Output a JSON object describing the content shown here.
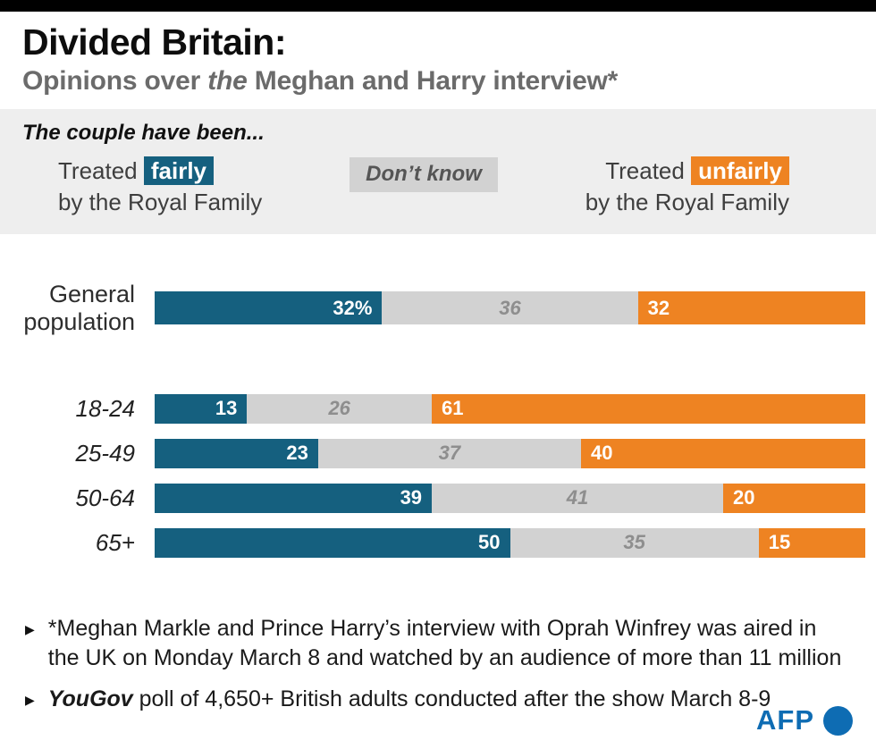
{
  "header": {
    "title": "Divided Britain:",
    "subtitle_pre": "Opinions over ",
    "subtitle_italic": "the",
    "subtitle_post": " Meghan and Harry interview*"
  },
  "legend": {
    "intro": "The couple have been...",
    "fairly_prefix": "Treated ",
    "fairly_word": "fairly",
    "fairly_line2": "by the Royal Family",
    "dont_know": "Don’t know",
    "unfairly_prefix": "Treated ",
    "unfairly_word": "unfairly",
    "unfairly_line2": "by the Royal Family"
  },
  "chart_data": {
    "type": "bar",
    "stacked": true,
    "orientation": "horizontal",
    "unit": "%",
    "xlim": [
      0,
      100
    ],
    "categories": [
      "General population",
      "18-24",
      "25-49",
      "50-64",
      "65+"
    ],
    "series": [
      {
        "name": "Treated fairly by the Royal Family",
        "key": "fairly",
        "color": "#15607f",
        "values": [
          32,
          13,
          23,
          39,
          50
        ]
      },
      {
        "name": "Don’t know",
        "key": "dont_know",
        "color": "#d2d2d2",
        "values": [
          36,
          26,
          37,
          41,
          35
        ]
      },
      {
        "name": "Treated unfairly by the Royal Family",
        "key": "unfairly",
        "color": "#ee8322",
        "values": [
          32,
          61,
          40,
          20,
          15
        ]
      }
    ],
    "value_labels": [
      [
        "32%",
        "36",
        "32"
      ],
      [
        "13",
        "26",
        "61"
      ],
      [
        "23",
        "37",
        "40"
      ],
      [
        "39",
        "41",
        "20"
      ],
      [
        "50",
        "35",
        "15"
      ]
    ],
    "row_meta": [
      {
        "label_lines": [
          "General",
          "population"
        ],
        "italic": false,
        "emphasized": true
      },
      {
        "label_lines": [
          "18-24"
        ],
        "italic": true,
        "emphasized": false
      },
      {
        "label_lines": [
          "25-49"
        ],
        "italic": true,
        "emphasized": false
      },
      {
        "label_lines": [
          "50-64"
        ],
        "italic": true,
        "emphasized": false
      },
      {
        "label_lines": [
          "65+"
        ],
        "italic": true,
        "emphasized": false
      }
    ]
  },
  "footnotes": [
    {
      "text": "*Meghan Markle and Prince Harry’s interview with Oprah Winfrey was aired in the UK on Monday March 8 and watched by an audience of more than 11 million"
    },
    {
      "brand": "YouGov",
      "text": " poll of 4,650+ British adults conducted after the show March 8-9"
    }
  ],
  "misc": {
    "bullet": "▶",
    "afp_label": "AFP",
    "afp_blue": "#0e6cb3"
  }
}
